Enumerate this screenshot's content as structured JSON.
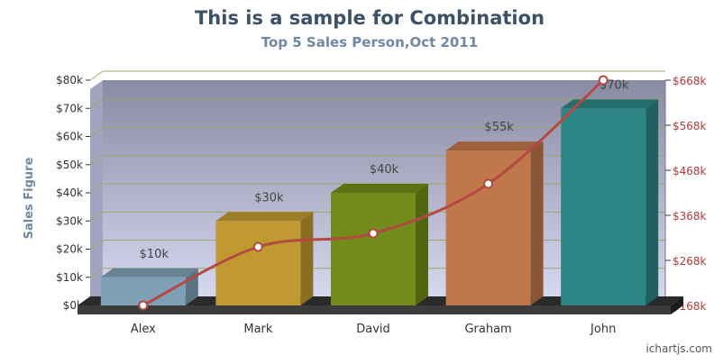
{
  "title": "This is a sample for Combination",
  "subtitle": "Top 5 Sales Person,Oct 2011",
  "credit": "ichartjs.com",
  "colors": {
    "bar_colors": [
      "#7f9fb6",
      "#c09a31",
      "#738b1a",
      "#c0774a",
      "#2e8585"
    ],
    "line_color": "#b24a42",
    "right_axis_color": "#b23a3a",
    "title_color": "#3c5068",
    "subtitle_color": "#6f88a4"
  },
  "chart_data": {
    "type": "bar",
    "categories": [
      "Alex",
      "Mark",
      "David",
      "Graham",
      "John"
    ],
    "series": [
      {
        "type": "bar",
        "values": [
          10,
          30,
          40,
          55,
          70
        ],
        "labels": [
          "$10k",
          "$30k",
          "$40k",
          "$55k",
          "$70k"
        ]
      },
      {
        "type": "line",
        "values": [
          168,
          298,
          328,
          438,
          668
        ]
      }
    ],
    "ylabel": "Sales Figure",
    "y_left": {
      "ticks": [
        "$0k",
        "$10k",
        "$20k",
        "$30k",
        "$40k",
        "$50k",
        "$60k",
        "$70k",
        "$80k"
      ],
      "range": [
        0,
        80
      ]
    },
    "y_right": {
      "ticks": [
        "$168k",
        "$268k",
        "$368k",
        "$468k",
        "$568k",
        "$668k"
      ],
      "range": [
        168,
        668
      ]
    },
    "grid": true,
    "style": "3d"
  }
}
